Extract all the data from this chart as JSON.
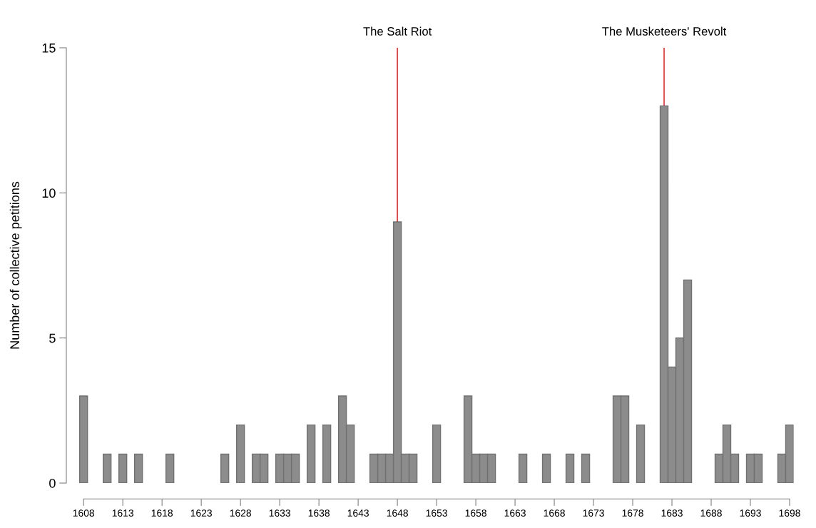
{
  "chart_data": {
    "type": "bar",
    "ylabel": "Number of collective petitions",
    "x": [
      1608,
      1611,
      1613,
      1615,
      1619,
      1626,
      1628,
      1630,
      1631,
      1633,
      1634,
      1635,
      1637,
      1639,
      1641,
      1642,
      1645,
      1646,
      1647,
      1648,
      1649,
      1650,
      1653,
      1657,
      1658,
      1659,
      1660,
      1664,
      1667,
      1670,
      1672,
      1676,
      1677,
      1679,
      1682,
      1683,
      1684,
      1685,
      1689,
      1690,
      1691,
      1693,
      1694,
      1697,
      1698
    ],
    "values": [
      3,
      1,
      1,
      1,
      1,
      1,
      2,
      1,
      1,
      1,
      1,
      1,
      2,
      2,
      3,
      2,
      1,
      1,
      1,
      9,
      1,
      1,
      2,
      3,
      1,
      1,
      1,
      1,
      1,
      1,
      1,
      3,
      3,
      2,
      13,
      4,
      5,
      7,
      1,
      2,
      1,
      1,
      1,
      1,
      2
    ],
    "color": "#8c8c8c",
    "xlim": [
      1605.8,
      1698.5
    ],
    "ylim": [
      0,
      15
    ],
    "xticks": [
      1608,
      1613,
      1618,
      1623,
      1628,
      1633,
      1638,
      1643,
      1648,
      1653,
      1658,
      1663,
      1668,
      1673,
      1678,
      1683,
      1688,
      1693,
      1698
    ],
    "yticks": [
      0,
      5,
      10,
      15
    ],
    "ref_lines": [
      {
        "axis": "x",
        "value": 1648,
        "label": "The Salt Riot",
        "color": "#ff0000"
      },
      {
        "axis": "x",
        "value": 1682,
        "label": "The Musketeers' Revolt",
        "color": "#ff0000"
      }
    ],
    "grid": false,
    "legend": false
  }
}
